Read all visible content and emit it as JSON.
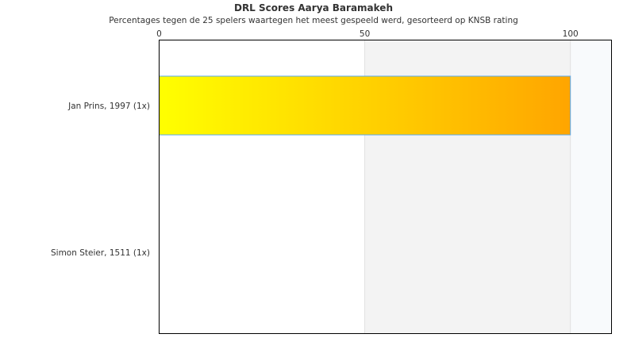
{
  "chart_data": {
    "type": "bar",
    "orientation": "horizontal",
    "title": "DRL Scores Aarya Baramakeh",
    "subtitle": "Percentages tegen de 25 spelers waartegen het meest gespeeld werd, gesorteerd op KNSB rating",
    "categories": [
      "Jan Prins, 1997 (1x)",
      "Simon Steier, 1511 (1x)"
    ],
    "values": [
      100,
      0
    ],
    "xlim": [
      0,
      110
    ],
    "xticks": [
      "0",
      "50",
      "100"
    ],
    "xaxis_position": "top",
    "bands": [
      {
        "from": 0,
        "to": 50,
        "color": "#ffffff"
      },
      {
        "from": 50,
        "to": 100,
        "color": "#f3f3f3"
      },
      {
        "from": 100,
        "to": 110,
        "color": "#f8fafc"
      }
    ],
    "bar_gradient": [
      "#ffff00",
      "#ffa500"
    ],
    "bar_border_color": "#5aa9f0",
    "grid": false,
    "legend": "none"
  }
}
